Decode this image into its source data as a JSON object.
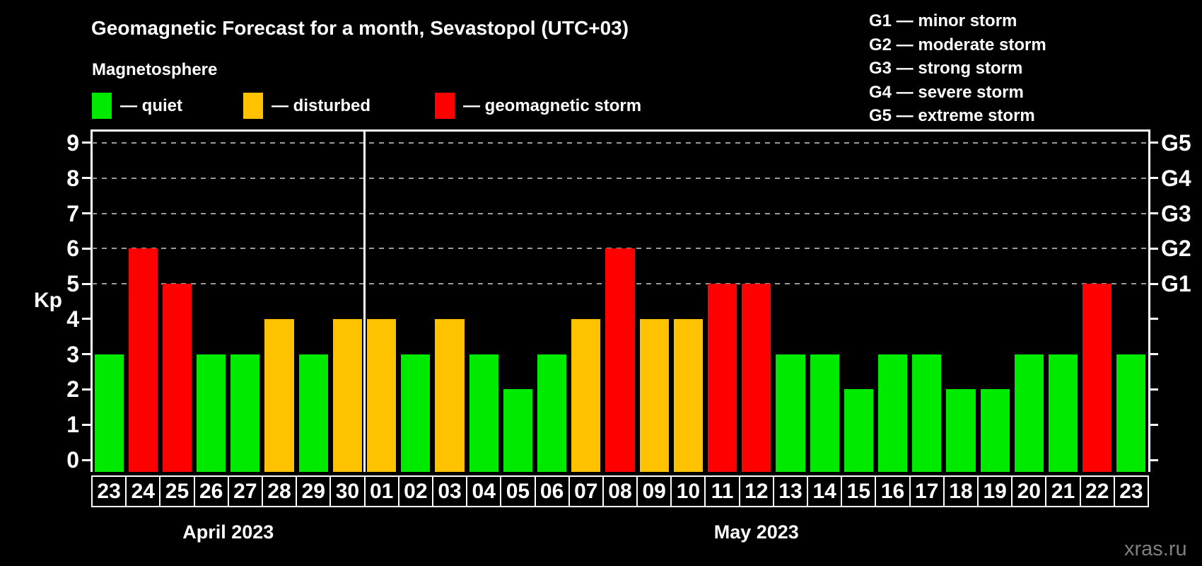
{
  "title": "Geomagnetic Forecast for a month, Sevastopol (UTC+03)",
  "subtitle": "Magnetosphere",
  "legend": {
    "items": [
      {
        "key": "quiet",
        "label": "— quiet"
      },
      {
        "key": "disturbed",
        "label": "— disturbed"
      },
      {
        "key": "storm",
        "label": "— geomagnetic storm"
      }
    ]
  },
  "g_legend": [
    "G1 — minor storm",
    "G2 — moderate storm",
    "G3 — strong storm",
    "G4 — severe storm",
    "G5 — extreme storm"
  ],
  "colors": {
    "background": "#000000",
    "quiet": "#00ea00",
    "disturbed": "#ffc200",
    "storm": "#ff0000",
    "axis": "#ffffff",
    "grid": "#9b9b9b",
    "text": "#ffffff",
    "watermark": "#7f7f7f"
  },
  "axes": {
    "y_label": "Kp",
    "y_ticks": [
      0,
      1,
      2,
      3,
      4,
      5,
      6,
      7,
      8,
      9
    ]
  },
  "watermark": "xras.ru",
  "chart_data": {
    "type": "bar",
    "title": "Geomagnetic Forecast for a month, Sevastopol (UTC+03)",
    "xlabel": "",
    "ylabel": "Kp",
    "ylim": [
      0,
      9.4
    ],
    "grid": "dashed horizontal at Kp 5-9 only",
    "legend_position": "top-left",
    "gridlines_at": [
      5,
      6,
      7,
      8,
      9
    ],
    "right_axis_labels": [
      {
        "kp": 5,
        "label": "G1"
      },
      {
        "kp": 6,
        "label": "G2"
      },
      {
        "kp": 7,
        "label": "G3"
      },
      {
        "kp": 8,
        "label": "G4"
      },
      {
        "kp": 9,
        "label": "G5"
      }
    ],
    "points": [
      {
        "day": "23",
        "month": "April 2023",
        "kp": 3,
        "level": "quiet"
      },
      {
        "day": "24",
        "month": "April 2023",
        "kp": 6,
        "level": "storm"
      },
      {
        "day": "25",
        "month": "April 2023",
        "kp": 5,
        "level": "storm"
      },
      {
        "day": "26",
        "month": "April 2023",
        "kp": 3,
        "level": "quiet"
      },
      {
        "day": "27",
        "month": "April 2023",
        "kp": 3,
        "level": "quiet"
      },
      {
        "day": "28",
        "month": "April 2023",
        "kp": 4,
        "level": "disturbed"
      },
      {
        "day": "29",
        "month": "April 2023",
        "kp": 3,
        "level": "quiet"
      },
      {
        "day": "30",
        "month": "April 2023",
        "kp": 4,
        "level": "disturbed"
      },
      {
        "day": "01",
        "month": "May 2023",
        "kp": 4,
        "level": "disturbed"
      },
      {
        "day": "02",
        "month": "May 2023",
        "kp": 3,
        "level": "quiet"
      },
      {
        "day": "03",
        "month": "May 2023",
        "kp": 4,
        "level": "disturbed"
      },
      {
        "day": "04",
        "month": "May 2023",
        "kp": 3,
        "level": "quiet"
      },
      {
        "day": "05",
        "month": "May 2023",
        "kp": 2,
        "level": "quiet"
      },
      {
        "day": "06",
        "month": "May 2023",
        "kp": 3,
        "level": "quiet"
      },
      {
        "day": "07",
        "month": "May 2023",
        "kp": 4,
        "level": "disturbed"
      },
      {
        "day": "08",
        "month": "May 2023",
        "kp": 6,
        "level": "storm"
      },
      {
        "day": "09",
        "month": "May 2023",
        "kp": 4,
        "level": "disturbed"
      },
      {
        "day": "10",
        "month": "May 2023",
        "kp": 4,
        "level": "disturbed"
      },
      {
        "day": "11",
        "month": "May 2023",
        "kp": 5,
        "level": "storm"
      },
      {
        "day": "12",
        "month": "May 2023",
        "kp": 5,
        "level": "storm"
      },
      {
        "day": "13",
        "month": "May 2023",
        "kp": 3,
        "level": "quiet"
      },
      {
        "day": "14",
        "month": "May 2023",
        "kp": 3,
        "level": "quiet"
      },
      {
        "day": "15",
        "month": "May 2023",
        "kp": 2,
        "level": "quiet"
      },
      {
        "day": "16",
        "month": "May 2023",
        "kp": 3,
        "level": "quiet"
      },
      {
        "day": "17",
        "month": "May 2023",
        "kp": 3,
        "level": "quiet"
      },
      {
        "day": "18",
        "month": "May 2023",
        "kp": 2,
        "level": "quiet"
      },
      {
        "day": "19",
        "month": "May 2023",
        "kp": 2,
        "level": "quiet"
      },
      {
        "day": "20",
        "month": "May 2023",
        "kp": 3,
        "level": "quiet"
      },
      {
        "day": "21",
        "month": "May 2023",
        "kp": 3,
        "level": "quiet"
      },
      {
        "day": "22",
        "month": "May 2023",
        "kp": 5,
        "level": "storm"
      },
      {
        "day": "23",
        "month": "May 2023",
        "kp": 3,
        "level": "quiet"
      }
    ]
  }
}
